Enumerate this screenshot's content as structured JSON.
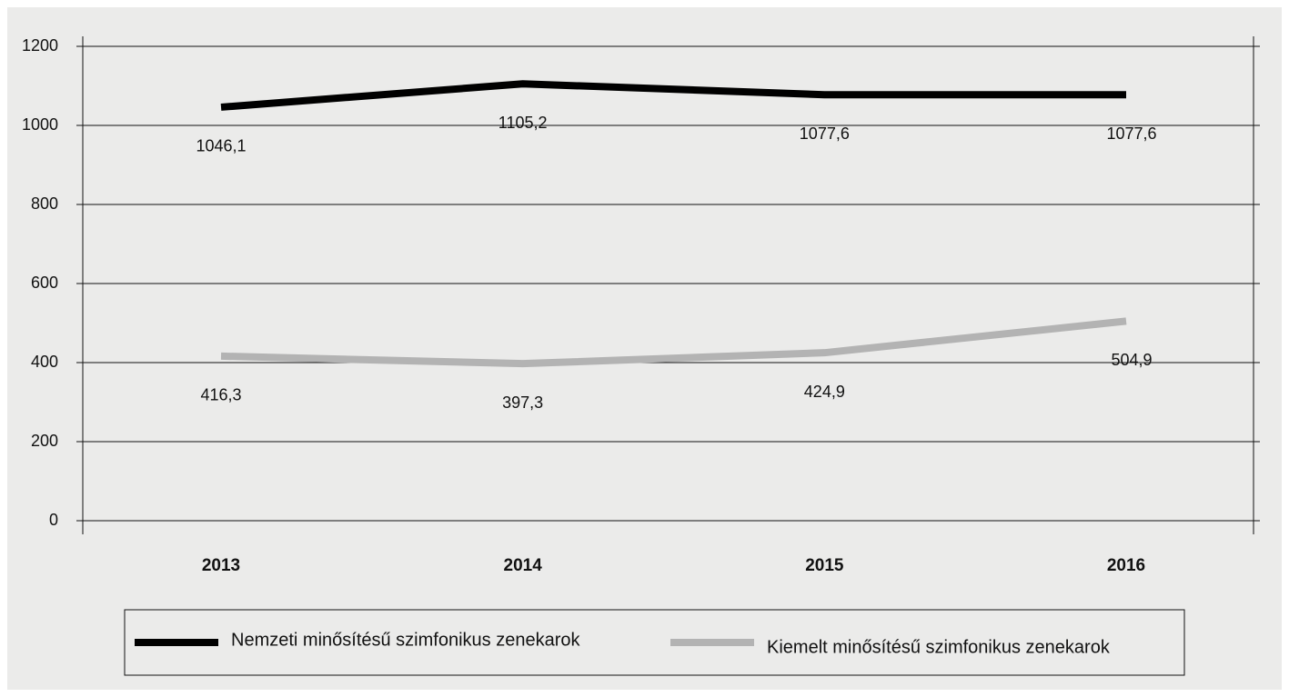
{
  "chart_data": {
    "type": "line",
    "categories": [
      "2013",
      "2014",
      "2015",
      "2016"
    ],
    "series": [
      {
        "name": "Nemzeti minősítésű szimfonikus zenekarok",
        "color": "#000000",
        "values": [
          1046.1,
          1105.2,
          1077.6,
          1077.6
        ],
        "value_labels": [
          "1046,1",
          "1105,2",
          "1077,6",
          "1077,6"
        ]
      },
      {
        "name": "Kiemelt minősítésű szimfonikus zenekarok",
        "color": "#b3b3b3",
        "values": [
          416.3,
          397.3,
          424.9,
          504.9
        ],
        "value_labels": [
          "416,3",
          "397,3",
          "424,9",
          "504,9"
        ]
      }
    ],
    "ylim": [
      0,
      1200
    ],
    "yticks": [
      0,
      200,
      400,
      600,
      800,
      1000,
      1200
    ],
    "grid": true,
    "legend": "bottom"
  }
}
